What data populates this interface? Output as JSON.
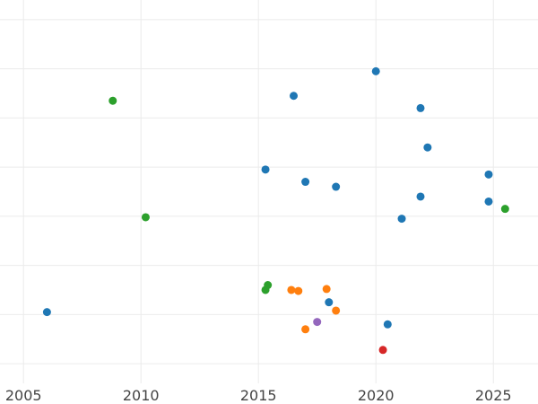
{
  "chart_data": {
    "type": "scatter",
    "title": "",
    "xlabel": "",
    "ylabel": "",
    "xlim": [
      2004.0,
      2026.9
    ],
    "ylim": [
      0.6,
      8.4
    ],
    "x_ticks": [
      2005,
      2010,
      2015,
      2020,
      2025
    ],
    "x_tick_labels": [
      "2005",
      "2010",
      "2015",
      "2020",
      "2025"
    ],
    "y_gridlines": [
      1,
      2,
      3,
      4,
      5,
      6,
      7,
      8
    ],
    "y_tick_labels_visible": false,
    "grid": true,
    "legend": "none",
    "series": [
      {
        "color": "#1f77b4",
        "points": [
          {
            "x": 2006.0,
            "y": 2.05
          },
          {
            "x": 2015.3,
            "y": 4.95
          },
          {
            "x": 2016.5,
            "y": 6.45
          },
          {
            "x": 2017.0,
            "y": 4.7
          },
          {
            "x": 2018.0,
            "y": 2.25
          },
          {
            "x": 2018.3,
            "y": 4.6
          },
          {
            "x": 2020.0,
            "y": 6.95
          },
          {
            "x": 2020.5,
            "y": 1.8
          },
          {
            "x": 2021.1,
            "y": 3.95
          },
          {
            "x": 2021.9,
            "y": 6.2
          },
          {
            "x": 2021.9,
            "y": 4.4
          },
          {
            "x": 2022.2,
            "y": 5.4
          },
          {
            "x": 2024.8,
            "y": 4.85
          },
          {
            "x": 2024.8,
            "y": 4.3
          }
        ]
      },
      {
        "color": "#2ca02c",
        "points": [
          {
            "x": 2008.8,
            "y": 6.35
          },
          {
            "x": 2010.2,
            "y": 3.98
          },
          {
            "x": 2015.3,
            "y": 2.5
          },
          {
            "x": 2015.4,
            "y": 2.6
          },
          {
            "x": 2025.5,
            "y": 4.15
          }
        ]
      },
      {
        "color": "#ff7f0e",
        "points": [
          {
            "x": 2016.4,
            "y": 2.5
          },
          {
            "x": 2016.7,
            "y": 2.48
          },
          {
            "x": 2017.0,
            "y": 1.7
          },
          {
            "x": 2017.9,
            "y": 2.52
          },
          {
            "x": 2018.3,
            "y": 2.08
          }
        ]
      },
      {
        "color": "#9467bd",
        "points": [
          {
            "x": 2017.5,
            "y": 1.85
          }
        ]
      },
      {
        "color": "#d62728",
        "points": [
          {
            "x": 2020.3,
            "y": 1.28
          }
        ]
      }
    ]
  }
}
